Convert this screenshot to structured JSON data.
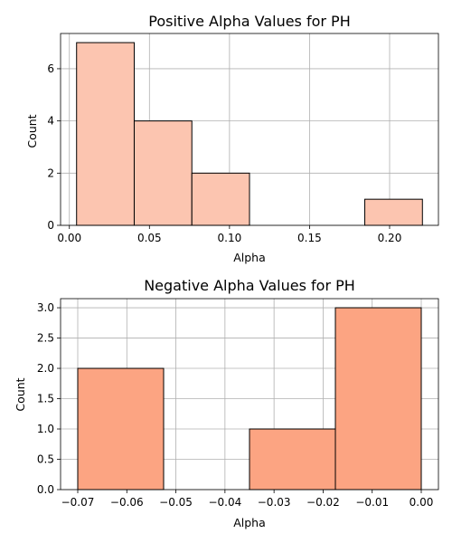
{
  "chart_data": [
    {
      "type": "bar",
      "title": "Positive Alpha Values for PH",
      "xlabel": "Alpha",
      "ylabel": "Count",
      "xlim": [
        -0.0055,
        0.2305
      ],
      "ylim": [
        0,
        7.35
      ],
      "xticks": [
        0.0,
        0.05,
        0.1,
        0.15,
        0.2
      ],
      "xtick_labels": [
        "0.00",
        "0.05",
        "0.10",
        "0.15",
        "0.20"
      ],
      "yticks": [
        0,
        2,
        4,
        6
      ],
      "ytick_labels": [
        "0",
        "2",
        "4",
        "6"
      ],
      "grid": true,
      "bar_color": "#fcc5b0",
      "bars": [
        {
          "x0": 0.0045,
          "x1": 0.0405,
          "value": 7
        },
        {
          "x0": 0.0405,
          "x1": 0.0765,
          "value": 4
        },
        {
          "x0": 0.0765,
          "x1": 0.1125,
          "value": 2
        },
        {
          "x0": 0.1125,
          "x1": 0.1485,
          "value": 0
        },
        {
          "x0": 0.1485,
          "x1": 0.1845,
          "value": 0
        },
        {
          "x0": 0.1845,
          "x1": 0.2205,
          "value": 1
        }
      ]
    },
    {
      "type": "bar",
      "title": "Negative Alpha Values for PH",
      "xlabel": "Alpha",
      "ylabel": "Count",
      "xlim": [
        -0.0735,
        0.0035
      ],
      "ylim": [
        0,
        3.15
      ],
      "xticks": [
        -0.07,
        -0.06,
        -0.05,
        -0.04,
        -0.03,
        -0.02,
        -0.01,
        0.0
      ],
      "xtick_labels": [
        "−0.07",
        "−0.06",
        "−0.05",
        "−0.04",
        "−0.03",
        "−0.02",
        "−0.01",
        "0.00"
      ],
      "yticks": [
        0.0,
        0.5,
        1.0,
        1.5,
        2.0,
        2.5,
        3.0
      ],
      "ytick_labels": [
        "0.0",
        "0.5",
        "1.0",
        "1.5",
        "2.0",
        "2.5",
        "3.0"
      ],
      "grid": true,
      "bar_color": "#fca482",
      "bars": [
        {
          "x0": -0.07,
          "x1": -0.0525,
          "value": 2
        },
        {
          "x0": -0.0525,
          "x1": -0.035,
          "value": 0
        },
        {
          "x0": -0.035,
          "x1": -0.0175,
          "value": 1
        },
        {
          "x0": -0.0175,
          "x1": 0.0,
          "value": 3
        }
      ]
    }
  ]
}
